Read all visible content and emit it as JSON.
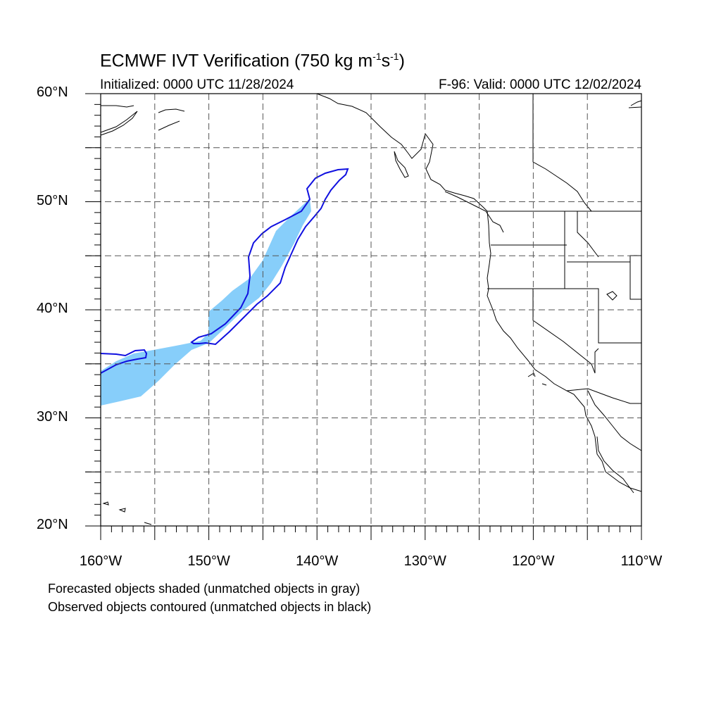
{
  "title_main": "ECMWF IVT Verification (750 kg m",
  "title_exp1": "-1",
  "title_mid": "s",
  "title_exp2": "-1",
  "title_end": ")",
  "initialized": "Initialized: 0000 UTC 11/28/2024",
  "valid": "F-96: Valid: 0000 UTC 12/02/2024",
  "lat_labels": [
    "60°N",
    "50°N",
    "40°N",
    "30°N",
    "20°N"
  ],
  "lon_labels": [
    "160°W",
    "150°W",
    "140°W",
    "130°W",
    "120°W",
    "110°W"
  ],
  "notes": [
    "Forecasted objects shaded (unmatched objects in gray)",
    "Observed objects contoured (unmatched objects in black)"
  ],
  "colors": {
    "forecast_fill": "#87cefa",
    "observed_contour": "#1010e0",
    "coast": "#000000"
  },
  "extent": {
    "lon_min": -160,
    "lon_max": -110,
    "lat_min": 20,
    "lat_max": 60
  }
}
